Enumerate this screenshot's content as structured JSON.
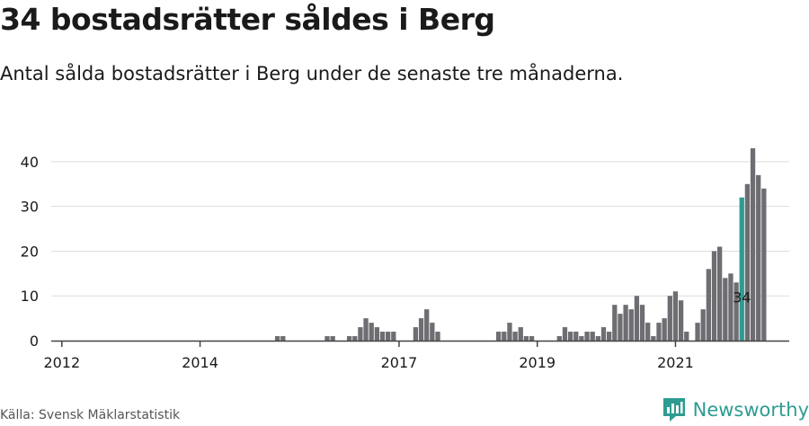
{
  "header": {
    "title": "34 bostadsrätter såldes i Berg",
    "subtitle": "Antal sålda bostadsrätter i Berg under de senaste tre månaderna."
  },
  "footer": {
    "source": "Källa: Svensk Mäklarstatistik",
    "brand": "Newsworthy",
    "brand_icon": "newsworthy-logo-icon"
  },
  "colors": {
    "bar": "#6e6d72",
    "highlight": "#2e9c92",
    "grid": "#dddddd",
    "axis": "#444444",
    "text": "#1a1a1a"
  },
  "chart_data": {
    "type": "bar",
    "title": "34 bostadsrätter såldes i Berg",
    "xlabel": "",
    "ylabel": "",
    "ylim": [
      0,
      45
    ],
    "yticks": [
      0,
      10,
      20,
      30,
      40
    ],
    "grid": true,
    "x_ticks": [
      {
        "label": "2012",
        "index": 1
      },
      {
        "label": "2014",
        "index": 26
      },
      {
        "label": "2017",
        "index": 62
      },
      {
        "label": "2019",
        "index": 87
      },
      {
        "label": "2021",
        "index": 112
      }
    ],
    "highlight_index": 124,
    "highlight_label": "34",
    "values": [
      0,
      0,
      0,
      0,
      0,
      0,
      0,
      0,
      0,
      0,
      0,
      0,
      0,
      0,
      0,
      0,
      0,
      0,
      0,
      0,
      0,
      0,
      0,
      0,
      0,
      0,
      0,
      0,
      0,
      0,
      0,
      0,
      0,
      0,
      0,
      0,
      0,
      0,
      0,
      0,
      1,
      1,
      0,
      0,
      0,
      0,
      0,
      0,
      0,
      1,
      1,
      0,
      0,
      1,
      1,
      3,
      5,
      4,
      3,
      2,
      2,
      2,
      0,
      0,
      0,
      3,
      5,
      7,
      4,
      2,
      0,
      0,
      0,
      0,
      0,
      0,
      0,
      0,
      0,
      0,
      2,
      2,
      4,
      2,
      3,
      1,
      1,
      0,
      0,
      0,
      0,
      1,
      3,
      2,
      2,
      1,
      2,
      2,
      1,
      3,
      2,
      8,
      6,
      8,
      7,
      10,
      8,
      4,
      1,
      4,
      5,
      10,
      11,
      9,
      2,
      0,
      4,
      7,
      16,
      20,
      21,
      14,
      15,
      13,
      32,
      35,
      43,
      37,
      34
    ]
  }
}
